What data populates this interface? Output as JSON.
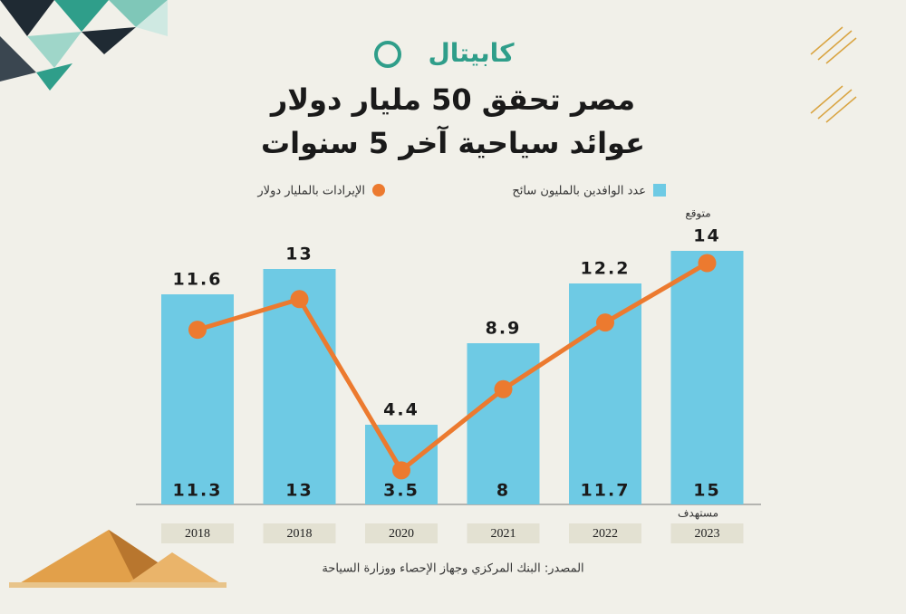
{
  "chart_data": {
    "type": "combo",
    "logo": "كابيتال",
    "title": "مصر تحقق 50 مليار دولار",
    "subtitle": "عوائد سياحية آخر 5 سنوات",
    "categories": [
      "2018",
      "2018",
      "2020",
      "2021",
      "2022",
      "2023"
    ],
    "series": [
      {
        "name": "عدد الوافدين بالمليون سائح",
        "color": "#6ecae4",
        "type": "bar",
        "values": [
          11.6,
          13,
          4.4,
          8.9,
          12.2,
          14
        ]
      },
      {
        "name": "الإيرادات بالمليار دولار",
        "color": "#ec7a2f",
        "type": "line",
        "values": [
          11.3,
          13,
          3.5,
          8,
          11.7,
          15
        ]
      }
    ],
    "annotations": [
      "متوقع",
      "مستهدف"
    ],
    "source": "المصدر: البنك المركزي وجهاز الإحصاء ووزارة السياحة"
  }
}
